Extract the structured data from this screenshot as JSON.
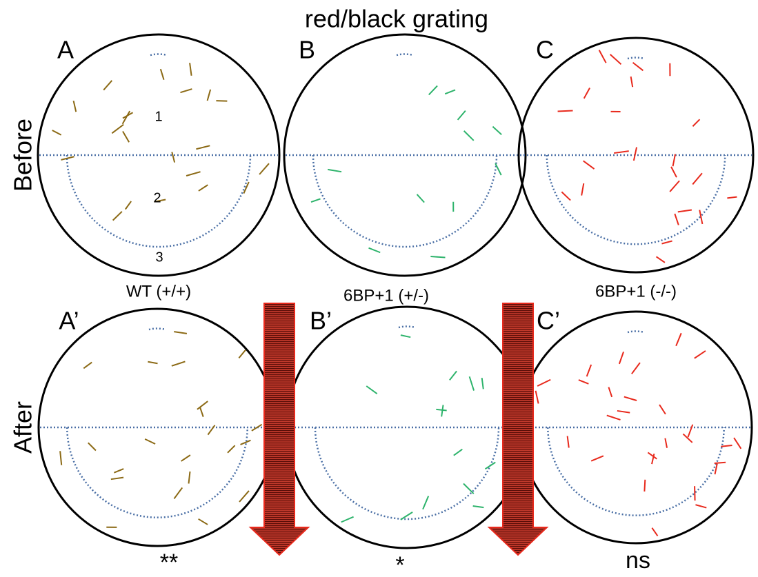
{
  "title": "red/black grating",
  "rows": [
    "Before",
    "After"
  ],
  "panels": [
    {
      "label": "A",
      "zones": [
        "1",
        "2",
        "3"
      ]
    },
    {
      "label": "B"
    },
    {
      "label": "C"
    },
    {
      "label": "A’",
      "genotype": "WT (+/+)",
      "significance": "**"
    },
    {
      "label": "B’",
      "genotype": "6BP+1 (+/-)",
      "significance": "*"
    },
    {
      "label": "C’",
      "genotype": "6BP+1 (-/-)",
      "significance": "ns"
    }
  ]
}
